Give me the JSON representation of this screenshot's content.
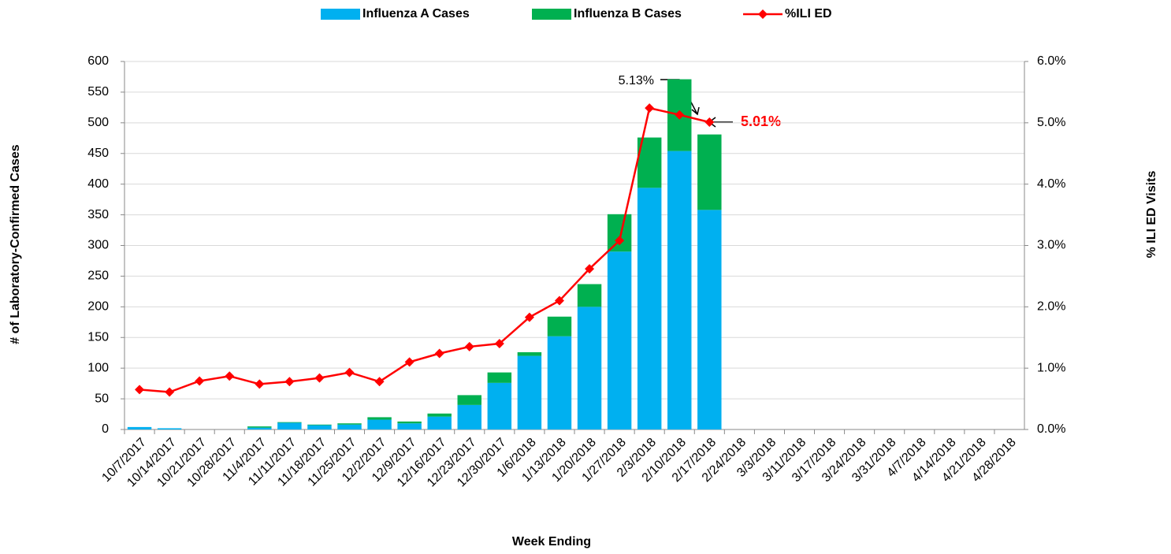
{
  "chart_data": {
    "type": "bar-line",
    "x_label": "Week Ending",
    "y_label": "# of Laboratory-Confirmed Cases",
    "y2_label": "% ILI ED Visits",
    "categories": [
      "10/7/2017",
      "10/14/2017",
      "10/21/2017",
      "10/28/2017",
      "11/4/2017",
      "11/11/2017",
      "11/18/2017",
      "11/25/2017",
      "12/2/2017",
      "12/9/2017",
      "12/16/2017",
      "12/23/2017",
      "12/30/2017",
      "1/6/2018",
      "1/13/2018",
      "1/20/2018",
      "1/27/2018",
      "2/3/2018",
      "2/10/2018",
      "2/17/2018",
      "2/24/2018",
      "3/3/2018",
      "3/11/2018",
      "3/17/2018",
      "3/24/2018",
      "3/31/2018",
      "4/7/2018",
      "4/14/2018",
      "4/21/2018",
      "4/28/2018"
    ],
    "series": [
      {
        "name": "Influenza A Cases",
        "type": "bar",
        "color": "#00b0f0",
        "values": [
          4,
          2,
          0,
          0,
          3,
          11,
          7,
          8,
          16,
          10,
          21,
          40,
          76,
          120,
          152,
          200,
          290,
          394,
          454,
          358,
          null,
          null,
          null,
          null,
          null,
          null,
          null,
          null,
          null,
          null
        ]
      },
      {
        "name": "Influenza B Cases",
        "type": "bar",
        "color": "#00b050",
        "values": [
          0,
          0,
          0,
          0,
          2,
          1,
          1,
          2,
          4,
          3,
          5,
          16,
          17,
          6,
          32,
          37,
          61,
          82,
          117,
          123,
          null,
          null,
          null,
          null,
          null,
          null,
          null,
          null,
          null,
          null
        ]
      },
      {
        "name": "%ILI ED",
        "type": "line",
        "axis": "y2",
        "color": "#ff0000",
        "values": [
          0.65,
          0.61,
          0.79,
          0.87,
          0.74,
          0.78,
          0.84,
          0.93,
          0.78,
          1.1,
          1.24,
          1.35,
          1.4,
          1.83,
          2.1,
          2.62,
          3.08,
          5.24,
          5.13,
          5.01,
          null,
          null,
          null,
          null,
          null,
          null,
          null,
          null,
          null,
          null
        ]
      }
    ],
    "ylim": [
      0,
      600
    ],
    "yticks": [
      0,
      50,
      100,
      150,
      200,
      250,
      300,
      350,
      400,
      450,
      500,
      550,
      600
    ],
    "y2lim": [
      0,
      6
    ],
    "y2ticks": [
      {
        "value": 0,
        "label": "0.0%"
      },
      {
        "value": 1,
        "label": "1.0%"
      },
      {
        "value": 2,
        "label": "2.0%"
      },
      {
        "value": 3,
        "label": "3.0%"
      },
      {
        "value": 4,
        "label": "4.0%"
      },
      {
        "value": 5,
        "label": "5.0%"
      },
      {
        "value": 6,
        "label": "6.0%"
      }
    ],
    "grid": true,
    "legend": "top",
    "annotations": [
      {
        "text": "5.13%"
      },
      {
        "text": "5.01%",
        "color": "#ff0000"
      }
    ]
  }
}
